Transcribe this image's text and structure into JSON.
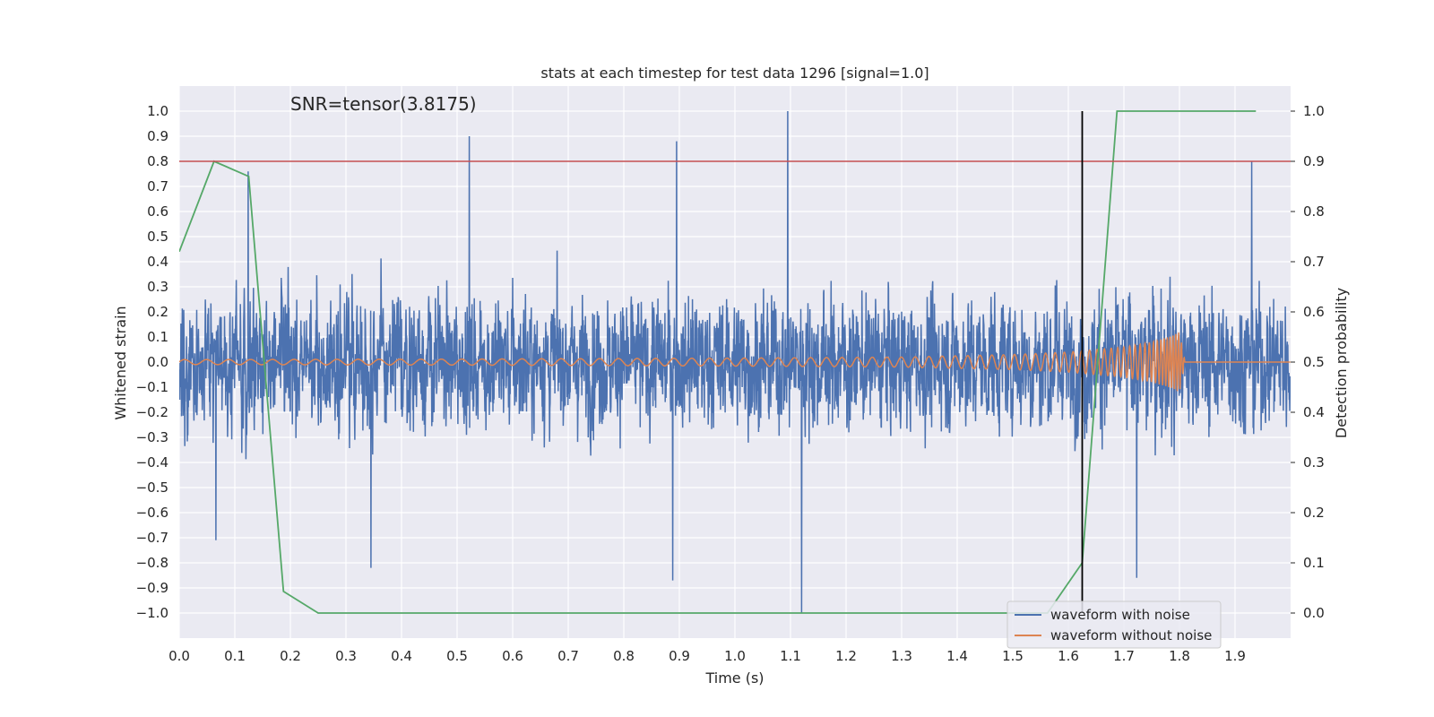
{
  "chart_data": {
    "type": "line",
    "title": "stats at each timestep for test data 1296 [signal=1.0]",
    "annotation": "SNR=tensor(3.8175)",
    "xlabel": "Time (s)",
    "ylabel": "Whitened strain",
    "ylabel_right": "Detection probability",
    "xlim": [
      0.0,
      2.0
    ],
    "ylim": [
      -1.1,
      1.1
    ],
    "ylim_right": [
      -0.05,
      1.05
    ],
    "x_ticks": [
      "0.0",
      "0.1",
      "0.2",
      "0.3",
      "0.4",
      "0.5",
      "0.6",
      "0.7",
      "0.8",
      "0.9",
      "1.0",
      "1.1",
      "1.2",
      "1.3",
      "1.4",
      "1.5",
      "1.6",
      "1.7",
      "1.8",
      "1.9"
    ],
    "y_ticks": [
      "1.0",
      "0.9",
      "0.8",
      "0.7",
      "0.6",
      "0.5",
      "0.4",
      "0.3",
      "0.2",
      "0.1",
      "0.0",
      "−0.1",
      "−0.2",
      "−0.3",
      "−0.4",
      "−0.5",
      "−0.6",
      "−0.7",
      "−0.8",
      "−0.9",
      "−1.0"
    ],
    "y_ticks_right": [
      "1.0",
      "0.9",
      "0.8",
      "0.7",
      "0.6",
      "0.5",
      "0.4",
      "0.3",
      "0.2",
      "0.1",
      "0.0"
    ],
    "grid": true,
    "legend_position": "lower-right",
    "threshold": {
      "y": 0.8,
      "color": "#c44e52"
    },
    "marker_line": {
      "x": 1.625,
      "y_range": [
        -1.0,
        1.0
      ],
      "color": "#000000"
    },
    "colors": {
      "noise": "#4c72b0",
      "clean": "#dd8452",
      "prob": "#55a868",
      "background": "#eaeaf2"
    },
    "series": [
      {
        "name": "waveform with noise",
        "color": "#4c72b0",
        "style": "dense noisy oscillation, amplitude ~0.35 typical",
        "notable_points": [
          {
            "x": 0.124,
            "y": 0.76
          },
          {
            "x": 0.522,
            "y": 0.9
          },
          {
            "x": 0.895,
            "y": 0.88
          },
          {
            "x": 1.095,
            "y": 1.0
          },
          {
            "x": 1.12,
            "y": -1.0
          },
          {
            "x": 0.888,
            "y": -0.87
          },
          {
            "x": 0.345,
            "y": -0.82
          },
          {
            "x": 0.066,
            "y": -0.71
          },
          {
            "x": 1.723,
            "y": -0.86
          },
          {
            "x": 1.93,
            "y": 0.8
          }
        ]
      },
      {
        "name": "waveform without noise",
        "color": "#dd8452",
        "style": "chirp, frequency and amplitude increasing until ~1.8 s",
        "x": [
          0.0,
          0.5,
          1.0,
          1.3,
          1.5,
          1.6,
          1.7,
          1.75,
          1.78,
          1.8,
          1.81
        ],
        "amplitude": [
          0.01,
          0.012,
          0.016,
          0.02,
          0.03,
          0.04,
          0.06,
          0.08,
          0.1,
          0.12,
          0.0
        ]
      },
      {
        "name": "detection probability",
        "color": "#55a868",
        "axis": "right",
        "x": [
          0.0,
          0.0625,
          0.125,
          0.1875,
          0.25,
          0.3125,
          0.375,
          0.4375,
          0.5,
          0.5625,
          0.625,
          0.6875,
          0.75,
          0.8125,
          0.875,
          0.9375,
          1.0,
          1.0625,
          1.125,
          1.1875,
          1.25,
          1.3125,
          1.375,
          1.4375,
          1.5,
          1.5625,
          1.625,
          1.6875,
          1.75,
          1.8125,
          1.875,
          1.9375
        ],
        "y": [
          0.72,
          0.9,
          0.87,
          0.043,
          0.0,
          0.0,
          0.0,
          0.0,
          0.0,
          0.0,
          0.0,
          0.0,
          0.0,
          0.0,
          0.0,
          0.0,
          0.0,
          0.0,
          0.0,
          0.0,
          0.0,
          0.0,
          0.0,
          0.0,
          0.0,
          0.0,
          0.1,
          1.0,
          1.0,
          1.0,
          1.0,
          1.0
        ]
      }
    ]
  }
}
